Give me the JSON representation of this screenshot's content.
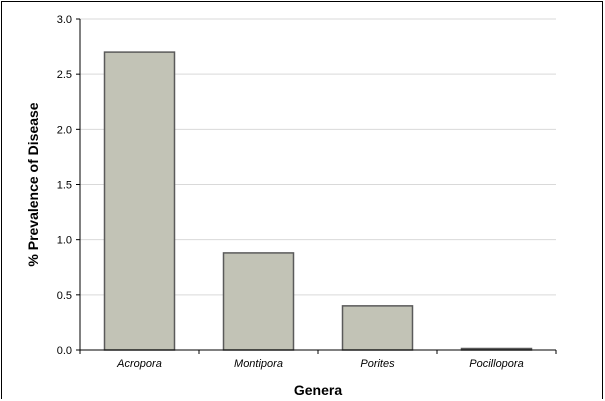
{
  "chart_data": {
    "type": "bar",
    "title": "",
    "xlabel": "Genera",
    "ylabel": "% Prevalence of Disease",
    "categories": [
      "Acropora",
      "Montipora",
      "Porites",
      "Pocillopora"
    ],
    "values": [
      2.7,
      0.88,
      0.4,
      0.01
    ],
    "ylim": [
      0,
      3.0
    ],
    "yticks": [
      "0.0",
      "0.5",
      "1.0",
      "1.5",
      "2.0",
      "2.5",
      "3.0"
    ],
    "grid": true,
    "legend": "none",
    "colors": {
      "bar_fill": "#c2c3b6",
      "bar_stroke": "#5a5a5a",
      "grid": "#d9d9d9",
      "axis": "#000000"
    }
  }
}
